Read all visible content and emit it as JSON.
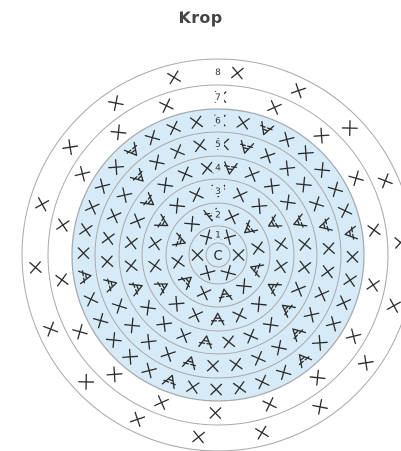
{
  "title": "Krop",
  "center_label": "C",
  "round_labels": [
    "1",
    "2",
    "3",
    "4",
    "5",
    "6",
    "7",
    "8"
  ],
  "colors": {
    "background": "#ffffff",
    "highlight_fill": "#d6ebf7",
    "ring_stroke": "#a9a9a9",
    "stitch_stroke": "#2b2b2b"
  },
  "rounds": [
    {
      "round": 1,
      "symbols": [
        "X",
        "X",
        "X",
        "X",
        "X",
        "X"
      ]
    },
    {
      "round": 2,
      "symbols": [
        "X",
        "V",
        "X",
        "V",
        "X",
        "V",
        "X",
        "V",
        "X",
        "V",
        "X",
        "V"
      ]
    },
    {
      "round": 3,
      "symbols": [
        "X",
        "X",
        "V",
        "X",
        "X",
        "V",
        "X",
        "X",
        "V",
        "X",
        "X",
        "V",
        "X",
        "X",
        "V",
        "X",
        "X",
        "V"
      ]
    },
    {
      "round": 4,
      "symbols": [
        "X",
        "X",
        "X",
        "V",
        "X",
        "X",
        "X",
        "V",
        "X",
        "X",
        "X",
        "V",
        "X",
        "X",
        "X",
        "V",
        "X",
        "X",
        "X",
        "V",
        "X",
        "X",
        "X",
        "V"
      ]
    },
    {
      "round": 5,
      "symbols": [
        "X",
        "X",
        "X",
        "X",
        "V",
        "X",
        "X",
        "X",
        "X",
        "V",
        "X",
        "X",
        "X",
        "X",
        "V",
        "X",
        "X",
        "X",
        "X",
        "V",
        "X",
        "X",
        "X",
        "X",
        "V",
        "X",
        "X",
        "X",
        "X",
        "V"
      ]
    },
    {
      "round": 6,
      "symbols": [
        "X",
        "X",
        "X",
        "X",
        "X",
        "V",
        "X",
        "X",
        "X",
        "X",
        "X",
        "V",
        "X",
        "X",
        "X",
        "X",
        "X",
        "V",
        "X",
        "X",
        "X",
        "X",
        "X",
        "V",
        "X",
        "X",
        "X",
        "X",
        "X",
        "V",
        "X",
        "X",
        "X",
        "X",
        "X",
        "V"
      ]
    },
    {
      "round": 7,
      "symbols": [
        "X",
        "X",
        "X",
        "X",
        "X",
        "X",
        "X",
        "X",
        "X",
        "X",
        "X",
        "X",
        "X",
        "X",
        "X",
        "X",
        "X",
        "X"
      ]
    },
    {
      "round": 8,
      "symbols": [
        "X",
        "X",
        "X",
        "X",
        "X",
        "X",
        "X",
        "X",
        "X",
        "X",
        "X",
        "X",
        "X",
        "X",
        "X",
        "X",
        "X",
        "X"
      ]
    }
  ]
}
